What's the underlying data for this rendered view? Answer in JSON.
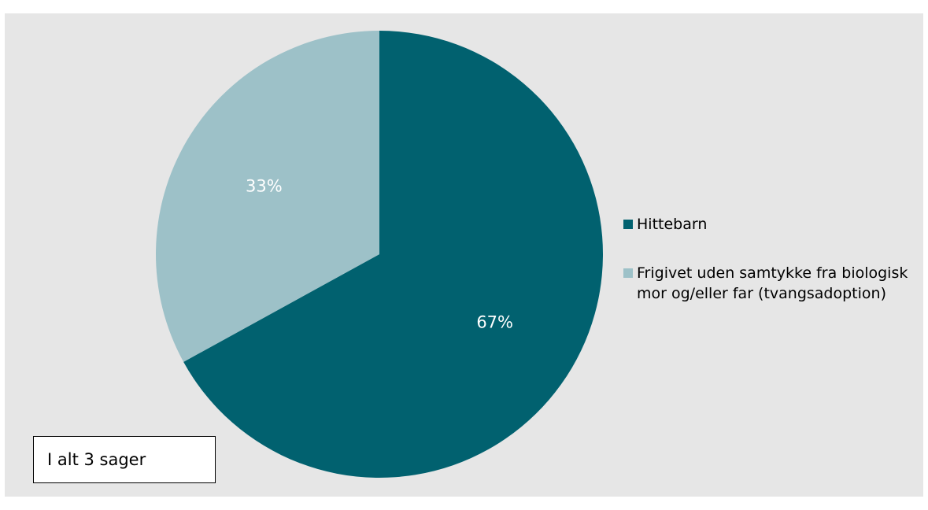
{
  "chart_data": {
    "type": "pie",
    "slices": [
      {
        "name": "Hittebarn",
        "value": 67,
        "label": "67%",
        "color": "#01616f"
      },
      {
        "name": "Frigivet uden samtykke fra biologisk mor og/eller far (tvangsadoption)",
        "value": 33,
        "label": "33%",
        "color": "#9dc1c8"
      }
    ],
    "start_angle": "12 o'clock",
    "direction": "clockwise",
    "legend": {
      "position": "right",
      "entries": [
        {
          "label": "Hittebarn",
          "color": "#01616f"
        },
        {
          "label": "Frigivet uden samtykke fra biologisk mor og/eller far (tvangsadoption)",
          "color": "#9dc1c8"
        }
      ]
    },
    "annotation": "I alt 3 sager"
  },
  "colors": {
    "background": "#e6e6e6",
    "label_text": "#ffffff"
  }
}
